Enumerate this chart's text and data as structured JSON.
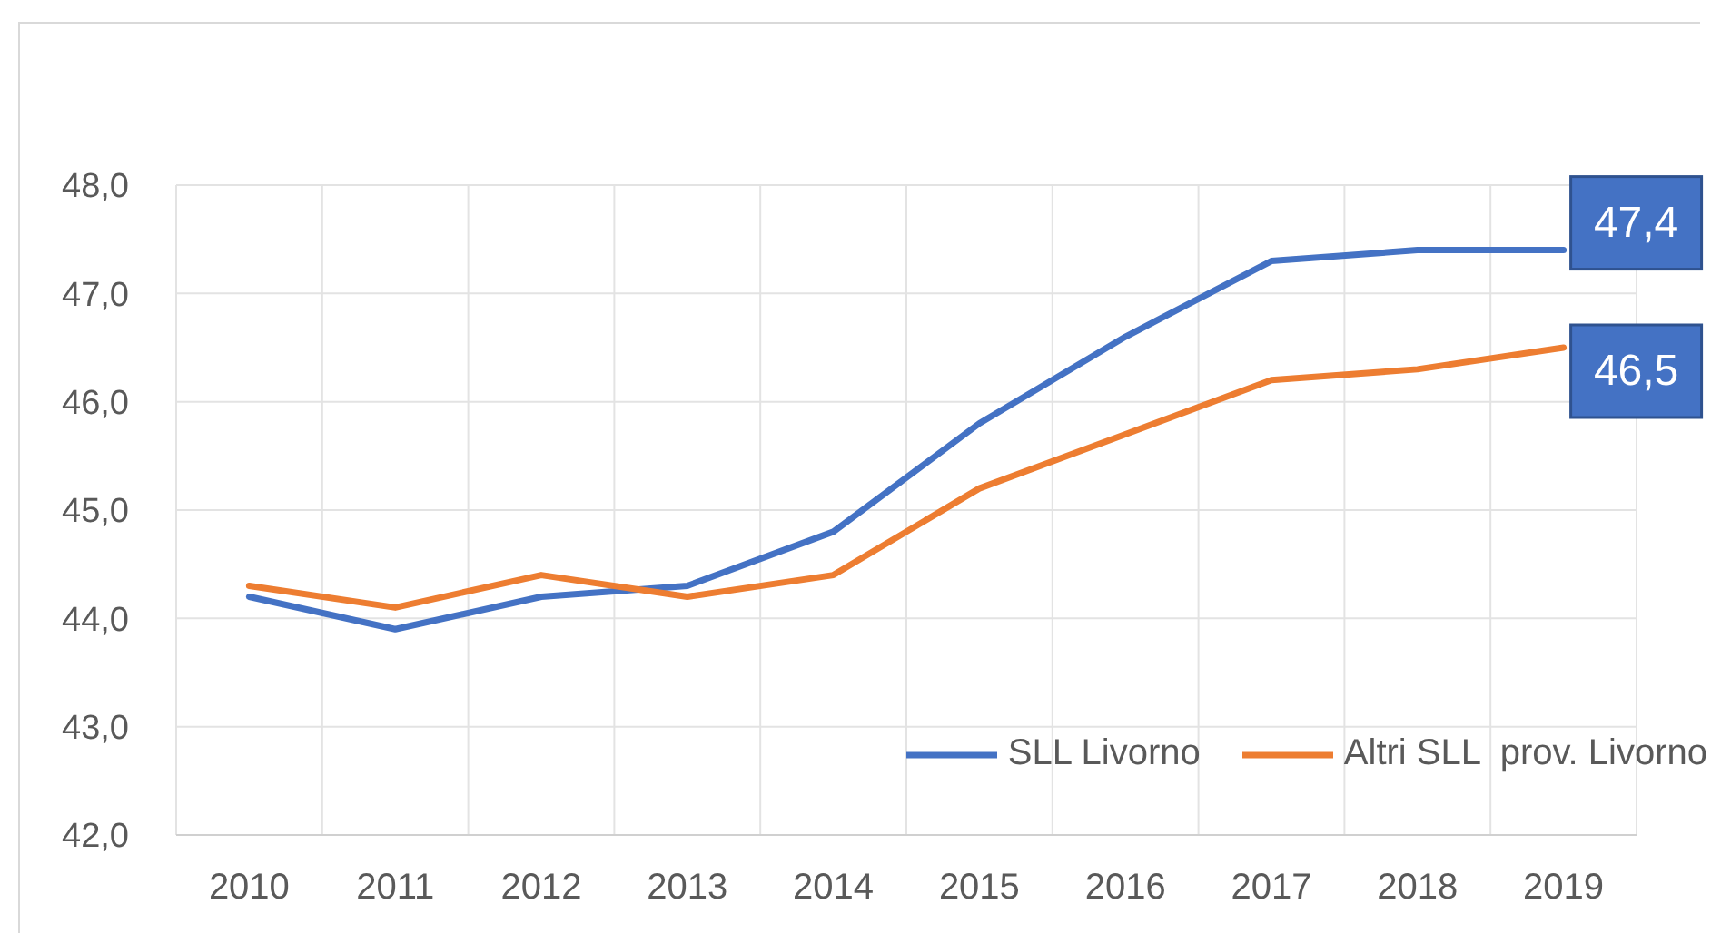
{
  "chart_data": {
    "type": "line",
    "categories": [
      "2010",
      "2011",
      "2012",
      "2013",
      "2014",
      "2015",
      "2016",
      "2017",
      "2018",
      "2019"
    ],
    "series": [
      {
        "name": "SLL Livorno",
        "color": "#4472c4",
        "values": [
          44.2,
          43.9,
          44.2,
          44.3,
          44.8,
          45.8,
          46.6,
          47.3,
          47.4,
          47.4
        ],
        "value_labels": [
          null,
          null,
          null,
          null,
          null,
          null,
          null,
          null,
          null,
          "47,4"
        ]
      },
      {
        "name": "Altri SLL  prov. Livorno",
        "color": "#ed7d31",
        "values": [
          44.3,
          44.1,
          44.4,
          44.2,
          44.4,
          45.2,
          45.7,
          46.2,
          46.3,
          46.5
        ],
        "value_labels": [
          null,
          null,
          null,
          null,
          null,
          null,
          null,
          null,
          null,
          "46,5"
        ]
      }
    ],
    "ylim": [
      42,
      48
    ],
    "yticks": [
      {
        "value": 42,
        "label": "42,0"
      },
      {
        "value": 43,
        "label": "43,0"
      },
      {
        "value": 44,
        "label": "44,0"
      },
      {
        "value": 45,
        "label": "45,0"
      },
      {
        "value": 46,
        "label": "46,0"
      },
      {
        "value": 47,
        "label": "47,0"
      },
      {
        "value": 48,
        "label": "48,0"
      }
    ],
    "grid": true,
    "legend": "bottom right",
    "marker": "none",
    "line_style": "solid"
  }
}
